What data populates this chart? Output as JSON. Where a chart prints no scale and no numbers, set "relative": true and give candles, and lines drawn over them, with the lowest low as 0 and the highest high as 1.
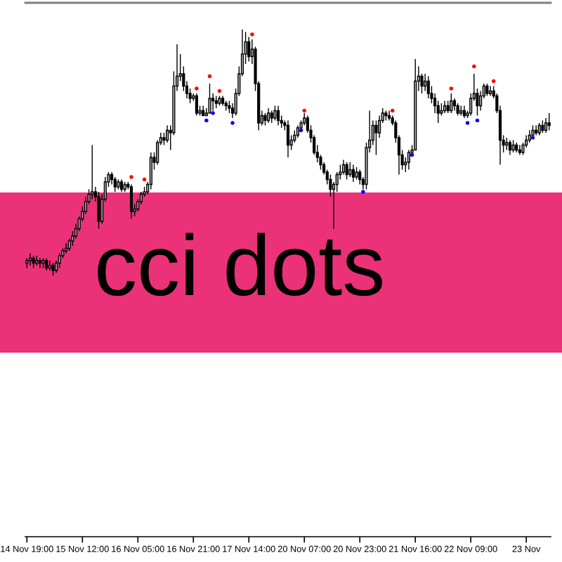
{
  "chart_data": {
    "type": "candlestick",
    "title": "cci dots",
    "relative": true,
    "categories": [
      "14 Nov 19:00",
      null,
      null,
      null,
      null,
      null,
      null,
      null,
      null,
      null,
      null,
      null,
      null,
      null,
      null,
      null,
      null,
      "15 Nov 12:00",
      null,
      null,
      null,
      null,
      null,
      null,
      null,
      null,
      null,
      null,
      null,
      null,
      null,
      null,
      null,
      null,
      "16 Nov 05:00",
      null,
      null,
      null,
      null,
      null,
      null,
      null,
      null,
      null,
      null,
      null,
      null,
      null,
      null,
      null,
      null,
      "16 Nov 21:00",
      null,
      null,
      null,
      null,
      null,
      null,
      null,
      null,
      null,
      null,
      null,
      null,
      null,
      null,
      null,
      null,
      "17 Nov 14:00",
      null,
      null,
      null,
      null,
      null,
      null,
      null,
      null,
      null,
      null,
      null,
      null,
      null,
      null,
      null,
      null,
      "20 Nov 07:00",
      null,
      null,
      null,
      null,
      null,
      null,
      null,
      null,
      null,
      null,
      null,
      null,
      null,
      null,
      null,
      null,
      "20 Nov 23:00",
      null,
      null,
      null,
      null,
      null,
      null,
      null,
      null,
      null,
      null,
      null,
      null,
      null,
      null,
      null,
      null,
      "21 Nov 16:00",
      null,
      null,
      null,
      null,
      null,
      null,
      null,
      null,
      null,
      null,
      null,
      null,
      null,
      null,
      null,
      null,
      "22 Nov 09:00",
      null,
      null,
      null,
      null,
      null,
      null,
      null,
      null,
      null,
      null,
      null,
      null,
      null,
      null,
      null,
      null,
      "23 Nov",
      null,
      null,
      null,
      null,
      null,
      null,
      null
    ],
    "ohlc": [
      [
        0.05,
        0.07,
        0.03,
        0.06
      ],
      [
        0.06,
        0.09,
        0.04,
        0.07
      ],
      [
        0.07,
        0.08,
        0.03,
        0.05
      ],
      [
        0.05,
        0.08,
        0.04,
        0.06
      ],
      [
        0.06,
        0.07,
        0.03,
        0.05
      ],
      [
        0.05,
        0.07,
        0.03,
        0.06
      ],
      [
        0.06,
        0.07,
        0.02,
        0.03
      ],
      [
        0.03,
        0.06,
        0.02,
        0.04
      ],
      [
        0.04,
        0.05,
        0,
        0.02
      ],
      [
        0.02,
        0.06,
        0.01,
        0.05
      ],
      [
        0.05,
        0.09,
        0.03,
        0.08
      ],
      [
        0.08,
        0.11,
        0.07,
        0.1
      ],
      [
        0.1,
        0.13,
        0.09,
        0.11
      ],
      [
        0.11,
        0.15,
        0.1,
        0.14
      ],
      [
        0.14,
        0.18,
        0.12,
        0.16
      ],
      [
        0.16,
        0.21,
        0.15,
        0.19
      ],
      [
        0.19,
        0.24,
        0.18,
        0.23
      ],
      [
        0.23,
        0.28,
        0.22,
        0.26
      ],
      [
        0.26,
        0.32,
        0.25,
        0.3
      ],
      [
        0.3,
        0.35,
        0.29,
        0.33
      ],
      [
        0.33,
        0.53,
        0.31,
        0.34
      ],
      [
        0.34,
        0.36,
        0.3,
        0.32
      ],
      [
        0.32,
        0.34,
        0.19,
        0.22
      ],
      [
        0.22,
        0.33,
        0.21,
        0.31
      ],
      [
        0.31,
        0.4,
        0.3,
        0.38
      ],
      [
        0.38,
        0.42,
        0.36,
        0.41
      ],
      [
        0.41,
        0.42,
        0.37,
        0.39
      ],
      [
        0.39,
        0.4,
        0.34,
        0.36
      ],
      [
        0.36,
        0.39,
        0.35,
        0.38
      ],
      [
        0.38,
        0.39,
        0.34,
        0.35
      ],
      [
        0.35,
        0.38,
        0.34,
        0.37
      ],
      [
        0.37,
        0.38,
        0.35,
        0.36
      ],
      [
        0.36,
        0.37,
        0.23,
        0.26
      ],
      [
        0.26,
        0.29,
        0.24,
        0.27
      ],
      [
        0.27,
        0.31,
        0.26,
        0.3
      ],
      [
        0.3,
        0.34,
        0.29,
        0.33
      ],
      [
        0.33,
        0.36,
        0.32,
        0.34
      ],
      [
        0.34,
        0.38,
        0.33,
        0.37
      ],
      [
        0.37,
        0.5,
        0.35,
        0.48
      ],
      [
        0.48,
        0.5,
        0.43,
        0.46
      ],
      [
        0.46,
        0.55,
        0.45,
        0.54
      ],
      [
        0.54,
        0.58,
        0.53,
        0.56
      ],
      [
        0.56,
        0.58,
        0.53,
        0.55
      ],
      [
        0.55,
        0.61,
        0.54,
        0.59
      ],
      [
        0.59,
        0.61,
        0.51,
        0.58
      ],
      [
        0.58,
        0.83,
        0.57,
        0.77
      ],
      [
        0.77,
        0.94,
        0.75,
        0.81
      ],
      [
        0.81,
        0.9,
        0.79,
        0.82
      ],
      [
        0.82,
        0.85,
        0.75,
        0.77
      ],
      [
        0.77,
        0.79,
        0.72,
        0.74
      ],
      [
        0.74,
        0.76,
        0.7,
        0.72
      ],
      [
        0.72,
        0.74,
        0.71,
        0.73
      ],
      [
        0.73,
        0.74,
        0.65,
        0.66
      ],
      [
        0.66,
        0.69,
        0.65,
        0.67
      ],
      [
        0.67,
        0.69,
        0.65,
        0.65
      ],
      [
        0.65,
        0.68,
        0.65,
        0.66
      ],
      [
        0.66,
        0.78,
        0.66,
        0.72
      ],
      [
        0.72,
        0.74,
        0.67,
        0.71
      ],
      [
        0.71,
        0.73,
        0.68,
        0.7
      ],
      [
        0.7,
        0.73,
        0.69,
        0.72
      ],
      [
        0.72,
        0.73,
        0.69,
        0.7
      ],
      [
        0.7,
        0.71,
        0.67,
        0.69
      ],
      [
        0.69,
        0.71,
        0.66,
        0.68
      ],
      [
        0.68,
        0.7,
        0.64,
        0.66
      ],
      [
        0.66,
        0.76,
        0.65,
        0.74
      ],
      [
        0.74,
        0.85,
        0.73,
        0.82
      ],
      [
        0.82,
        1,
        0.81,
        0.9
      ],
      [
        0.9,
        0.99,
        0.86,
        0.95
      ],
      [
        0.95,
        0.97,
        0.87,
        0.89
      ],
      [
        0.89,
        0.96,
        0.86,
        0.92
      ],
      [
        0.92,
        0.93,
        0.75,
        0.78
      ],
      [
        0.78,
        0.79,
        0.59,
        0.62
      ],
      [
        0.62,
        0.67,
        0.61,
        0.65
      ],
      [
        0.65,
        0.66,
        0.61,
        0.63
      ],
      [
        0.63,
        0.68,
        0.62,
        0.66
      ],
      [
        0.66,
        0.67,
        0.62,
        0.64
      ],
      [
        0.64,
        0.69,
        0.63,
        0.67
      ],
      [
        0.67,
        0.69,
        0.61,
        0.63
      ],
      [
        0.63,
        0.65,
        0.6,
        0.62
      ],
      [
        0.62,
        0.63,
        0.59,
        0.61
      ],
      [
        0.61,
        0.63,
        0.48,
        0.53
      ],
      [
        0.53,
        0.57,
        0.51,
        0.55
      ],
      [
        0.55,
        0.59,
        0.54,
        0.57
      ],
      [
        0.57,
        0.61,
        0.56,
        0.6
      ],
      [
        0.6,
        0.63,
        0.6,
        0.62
      ],
      [
        0.62,
        0.66,
        0.61,
        0.64
      ],
      [
        0.64,
        0.65,
        0.58,
        0.59
      ],
      [
        0.59,
        0.61,
        0.54,
        0.56
      ],
      [
        0.56,
        0.57,
        0.49,
        0.5
      ],
      [
        0.5,
        0.53,
        0.46,
        0.48
      ],
      [
        0.48,
        0.49,
        0.43,
        0.45
      ],
      [
        0.45,
        0.46,
        0.41,
        0.42
      ],
      [
        0.42,
        0.43,
        0.37,
        0.39
      ],
      [
        0.39,
        0.41,
        0.32,
        0.35
      ],
      [
        0.35,
        0.38,
        0.19,
        0.37
      ],
      [
        0.37,
        0.42,
        0.34,
        0.41
      ],
      [
        0.41,
        0.45,
        0.39,
        0.42
      ],
      [
        0.42,
        0.47,
        0.41,
        0.45
      ],
      [
        0.45,
        0.46,
        0.39,
        0.41
      ],
      [
        0.41,
        0.46,
        0.4,
        0.43
      ],
      [
        0.43,
        0.45,
        0.38,
        0.4
      ],
      [
        0.4,
        0.44,
        0.39,
        0.42
      ],
      [
        0.42,
        0.43,
        0.37,
        0.39
      ],
      [
        0.39,
        0.4,
        0.35,
        0.37
      ],
      [
        0.37,
        0.54,
        0.35,
        0.52
      ],
      [
        0.52,
        0.67,
        0.5,
        0.55
      ],
      [
        0.55,
        0.63,
        0.53,
        0.61
      ],
      [
        0.61,
        0.63,
        0.49,
        0.58
      ],
      [
        0.58,
        0.65,
        0.56,
        0.63
      ],
      [
        0.63,
        0.68,
        0.62,
        0.66
      ],
      [
        0.66,
        0.67,
        0.63,
        0.65
      ],
      [
        0.65,
        0.67,
        0.63,
        0.64
      ],
      [
        0.64,
        0.65,
        0.61,
        0.62
      ],
      [
        0.62,
        0.63,
        0.54,
        0.56
      ],
      [
        0.56,
        0.57,
        0.41,
        0.49
      ],
      [
        0.49,
        0.51,
        0.43,
        0.45
      ],
      [
        0.45,
        0.48,
        0.42,
        0.46
      ],
      [
        0.46,
        0.51,
        0.43,
        0.5
      ],
      [
        0.5,
        0.53,
        0.5,
        0.51
      ],
      [
        0.51,
        0.88,
        0.51,
        0.79
      ],
      [
        0.79,
        0.85,
        0.75,
        0.81
      ],
      [
        0.81,
        0.82,
        0.74,
        0.77
      ],
      [
        0.77,
        0.82,
        0.75,
        0.79
      ],
      [
        0.79,
        0.81,
        0.72,
        0.74
      ],
      [
        0.74,
        0.77,
        0.7,
        0.72
      ],
      [
        0.72,
        0.74,
        0.66,
        0.69
      ],
      [
        0.69,
        0.71,
        0.62,
        0.66
      ],
      [
        0.66,
        0.7,
        0.65,
        0.67
      ],
      [
        0.67,
        0.71,
        0.66,
        0.69
      ],
      [
        0.69,
        0.71,
        0.66,
        0.67
      ],
      [
        0.67,
        0.74,
        0.66,
        0.71
      ],
      [
        0.71,
        0.72,
        0.67,
        0.69
      ],
      [
        0.69,
        0.7,
        0.65,
        0.66
      ],
      [
        0.66,
        0.69,
        0.65,
        0.67
      ],
      [
        0.67,
        0.69,
        0.64,
        0.65
      ],
      [
        0.65,
        0.67,
        0.64,
        0.66
      ],
      [
        0.66,
        0.74,
        0.65,
        0.72
      ],
      [
        0.72,
        0.82,
        0.71,
        0.74
      ],
      [
        0.74,
        0.76,
        0.65,
        0.69
      ],
      [
        0.69,
        0.75,
        0.67,
        0.73
      ],
      [
        0.73,
        0.78,
        0.72,
        0.77
      ],
      [
        0.77,
        0.78,
        0.73,
        0.74
      ],
      [
        0.74,
        0.77,
        0.73,
        0.75
      ],
      [
        0.75,
        0.77,
        0.72,
        0.73
      ],
      [
        0.73,
        0.74,
        0.66,
        0.67
      ],
      [
        0.67,
        0.69,
        0.45,
        0.55
      ],
      [
        0.55,
        0.57,
        0.5,
        0.53
      ],
      [
        0.53,
        0.56,
        0.51,
        0.54
      ],
      [
        0.54,
        0.55,
        0.49,
        0.51
      ],
      [
        0.51,
        0.55,
        0.5,
        0.53
      ],
      [
        0.53,
        0.54,
        0.5,
        0.51
      ],
      [
        0.51,
        0.53,
        0.49,
        0.5
      ],
      [
        0.5,
        0.54,
        0.49,
        0.53
      ],
      [
        0.53,
        0.57,
        0.52,
        0.55
      ],
      [
        0.55,
        0.59,
        0.54,
        0.57
      ],
      [
        0.57,
        0.61,
        0.57,
        0.59
      ],
      [
        0.59,
        0.61,
        0.57,
        0.58
      ],
      [
        0.58,
        0.62,
        0.57,
        0.61
      ],
      [
        0.61,
        0.63,
        0.58,
        0.59
      ],
      [
        0.59,
        0.64,
        0.58,
        0.62
      ],
      [
        0.62,
        0.66,
        0.59,
        0.61
      ]
    ],
    "series": [
      {
        "type": "scatter",
        "color": "#ff0000",
        "marker": "circle",
        "values": [
          null,
          null,
          null,
          null,
          null,
          null,
          null,
          null,
          null,
          null,
          null,
          null,
          null,
          null,
          null,
          null,
          null,
          null,
          null,
          null,
          null,
          null,
          null,
          null,
          null,
          null,
          null,
          null,
          null,
          null,
          null,
          null,
          0.4,
          null,
          null,
          null,
          0.39,
          null,
          null,
          null,
          null,
          null,
          null,
          null,
          null,
          null,
          null,
          null,
          null,
          null,
          null,
          null,
          0.76,
          null,
          null,
          null,
          0.81,
          null,
          null,
          0.75,
          null,
          null,
          null,
          null,
          null,
          null,
          null,
          null,
          null,
          0.98,
          null,
          null,
          null,
          null,
          null,
          null,
          null,
          null,
          null,
          null,
          null,
          null,
          null,
          null,
          null,
          0.67,
          null,
          null,
          null,
          null,
          null,
          null,
          null,
          null,
          null,
          null,
          null,
          null,
          null,
          null,
          null,
          null,
          null,
          null,
          null,
          null,
          null,
          null,
          null,
          null,
          null,
          null,
          0.67,
          null,
          null,
          null,
          null,
          null,
          null,
          null,
          null,
          null,
          null,
          null,
          null,
          null,
          null,
          null,
          null,
          null,
          0.76,
          null,
          null,
          null,
          null,
          null,
          null,
          0.85,
          null,
          null,
          null,
          null,
          null,
          0.79,
          null,
          null,
          null,
          null,
          null,
          null,
          null,
          null,
          null,
          null,
          null,
          null,
          null,
          null,
          null,
          null,
          null
        ]
      },
      {
        "type": "scatter",
        "color": "#0000ff",
        "marker": "circle",
        "values": [
          null,
          null,
          null,
          null,
          null,
          null,
          null,
          null,
          null,
          null,
          null,
          null,
          null,
          null,
          null,
          null,
          null,
          null,
          null,
          null,
          null,
          null,
          null,
          null,
          null,
          null,
          null,
          null,
          null,
          null,
          null,
          null,
          null,
          null,
          null,
          null,
          null,
          null,
          null,
          null,
          null,
          null,
          null,
          null,
          null,
          null,
          null,
          null,
          null,
          null,
          null,
          null,
          null,
          null,
          null,
          0.63,
          null,
          0.66,
          null,
          null,
          null,
          null,
          null,
          0.62,
          null,
          null,
          null,
          null,
          null,
          null,
          null,
          null,
          null,
          null,
          null,
          null,
          null,
          null,
          null,
          null,
          null,
          null,
          null,
          null,
          0.59,
          null,
          null,
          null,
          null,
          null,
          null,
          null,
          null,
          null,
          null,
          null,
          null,
          null,
          null,
          null,
          null,
          null,
          null,
          0.34,
          null,
          null,
          null,
          null,
          null,
          null,
          null,
          null,
          null,
          null,
          null,
          null,
          null,
          null,
          0.49,
          null,
          null,
          null,
          null,
          null,
          null,
          null,
          null,
          null,
          null,
          null,
          null,
          null,
          null,
          null,
          null,
          0.62,
          null,
          null,
          0.63,
          null,
          null,
          null,
          null,
          null,
          null,
          null,
          null,
          null,
          null,
          null,
          null,
          null,
          null,
          null,
          null,
          0.56,
          null,
          null,
          null,
          null,
          null
        ]
      }
    ]
  }
}
